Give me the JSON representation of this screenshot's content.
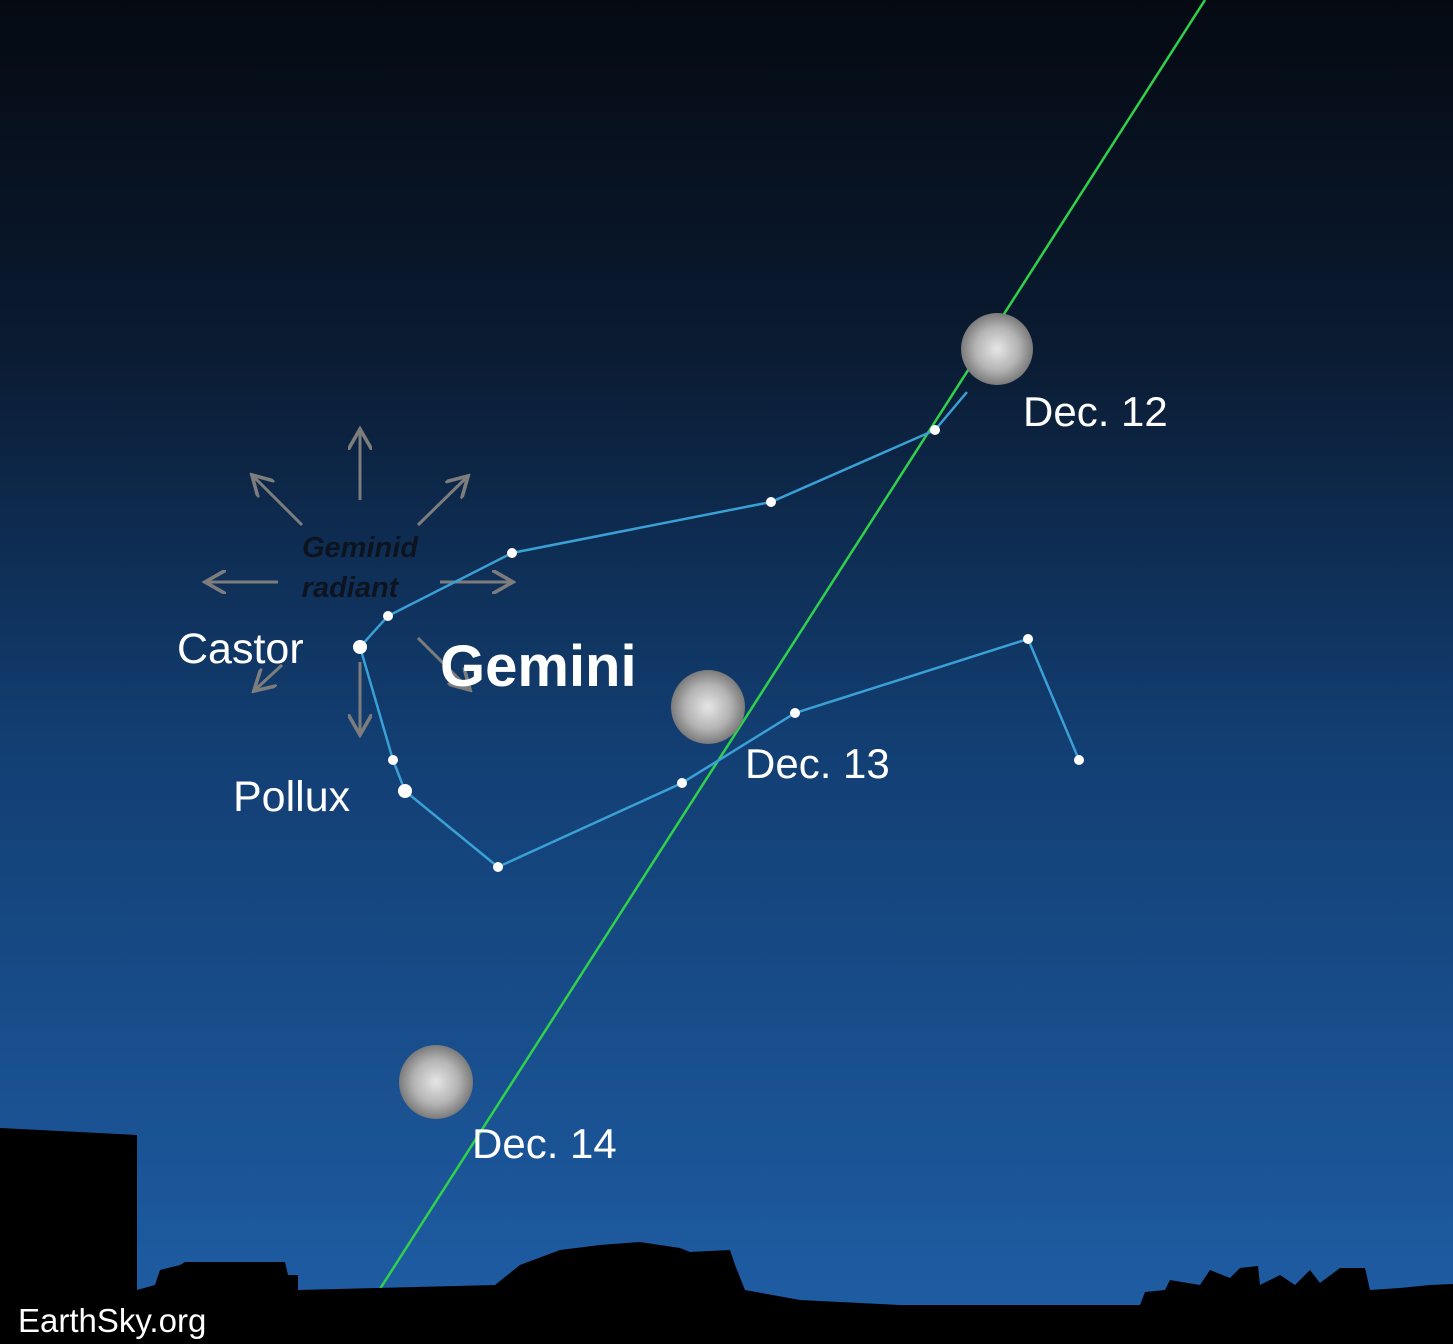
{
  "constellation": "Gemini",
  "stars": {
    "castor": "Castor",
    "pollux": "Pollux"
  },
  "radiant": {
    "line1": "Geminid",
    "line2": "radiant"
  },
  "moons": [
    {
      "label": "Dec. 12"
    },
    {
      "label": "Dec. 13"
    },
    {
      "label": "Dec. 14"
    }
  ],
  "credit": "EarthSky.org"
}
